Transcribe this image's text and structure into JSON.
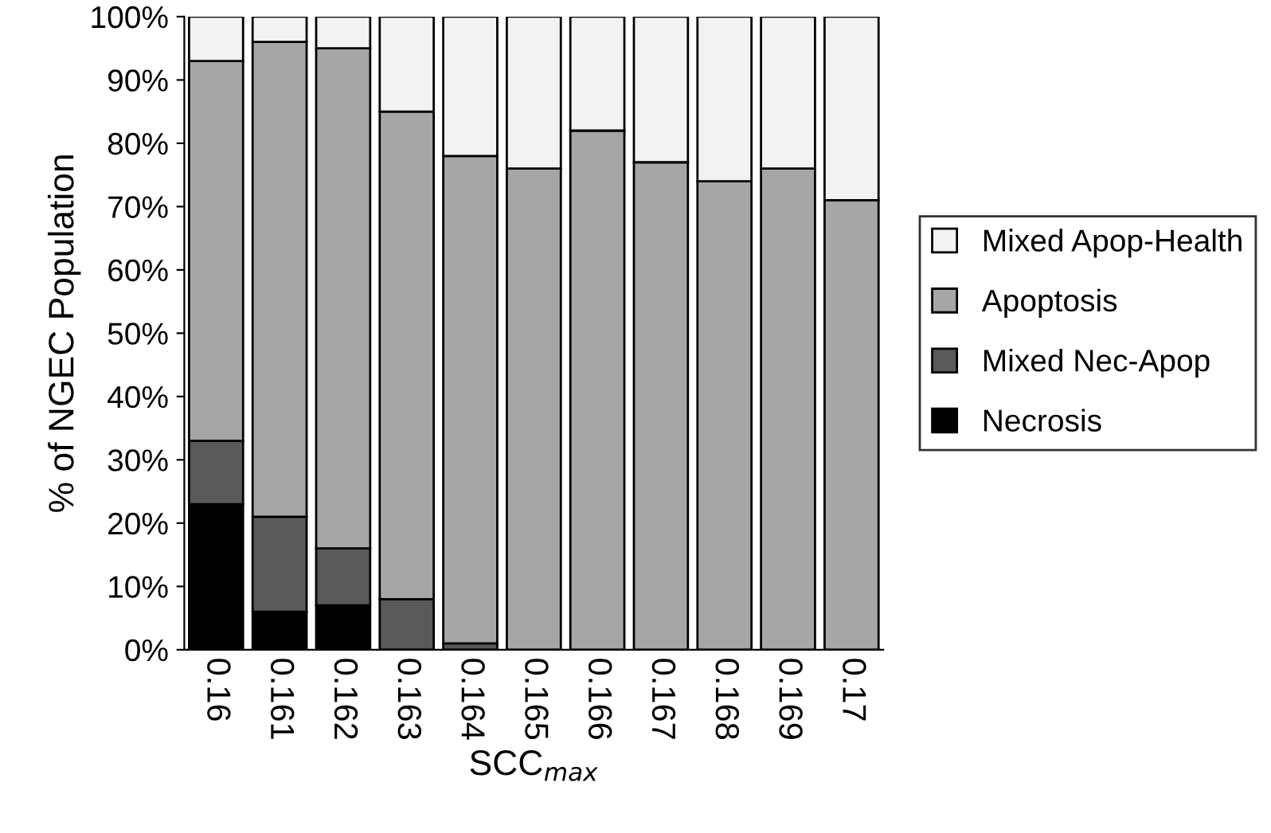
{
  "chart_data": {
    "type": "bar",
    "stacked": true,
    "categories": [
      "0.16",
      "0.161",
      "0.162",
      "0.163",
      "0.164",
      "0.165",
      "0.166",
      "0.167",
      "0.168",
      "0.169",
      "0.17"
    ],
    "xlabel": "SCC$_{max}$",
    "ylabel": "% of NGEC Population",
    "ylim": [
      0,
      100
    ],
    "yticks": [
      {
        "value": 0,
        "label": "0%"
      },
      {
        "value": 10,
        "label": "10%"
      },
      {
        "value": 20,
        "label": "20%"
      },
      {
        "value": 30,
        "label": "30%"
      },
      {
        "value": 40,
        "label": "40%"
      },
      {
        "value": 50,
        "label": "50%"
      },
      {
        "value": 60,
        "label": "60%"
      },
      {
        "value": 70,
        "label": "70%"
      },
      {
        "value": 80,
        "label": "80%"
      },
      {
        "value": 90,
        "label": "90%"
      },
      {
        "value": 100,
        "label": "100%"
      }
    ],
    "legend": "right",
    "grid": false,
    "series": [
      {
        "name": "Necrosis",
        "color": "#000000",
        "values": [
          23,
          6,
          7,
          0,
          0,
          0,
          0,
          0,
          0,
          0,
          0
        ]
      },
      {
        "name": "Mixed Nec-Apop",
        "color": "#595959",
        "values": [
          10,
          15,
          9,
          8,
          1,
          0,
          0,
          0,
          0,
          0,
          0
        ]
      },
      {
        "name": "Apoptosis",
        "color": "#a6a6a6",
        "values": [
          60,
          75,
          79,
          77,
          77,
          76,
          82,
          77,
          74,
          76,
          71
        ]
      },
      {
        "name": "Mixed Apop-Health",
        "color": "#f2f2f2",
        "values": [
          7,
          4,
          5,
          15,
          22,
          24,
          18,
          23,
          26,
          24,
          29
        ]
      }
    ]
  }
}
